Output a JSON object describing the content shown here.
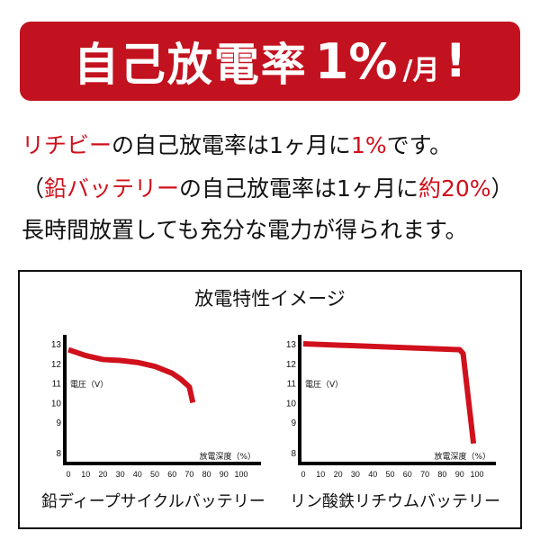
{
  "banner": {
    "main": "自己放電率",
    "pct": "1%",
    "unit": "/月",
    "excl": "!"
  },
  "lines": [
    {
      "parts": [
        {
          "t": "リチビー",
          "red": true
        },
        {
          "t": "の自己放電率は1ヶ月に",
          "red": false
        },
        {
          "t": "1%",
          "red": true
        },
        {
          "t": "です。",
          "red": false
        }
      ]
    },
    {
      "parts": [
        {
          "t": "（",
          "red": false
        },
        {
          "t": "鉛バッテリー",
          "red": true
        },
        {
          "t": "の自己放電率は1ヶ月に",
          "red": false
        },
        {
          "t": "約20%",
          "red": true
        },
        {
          "t": "）",
          "red": false
        }
      ]
    },
    {
      "parts": [
        {
          "t": "長時間放置しても充分な電力が得られます。",
          "red": false
        }
      ]
    }
  ],
  "colors": {
    "accent": "#c3121f",
    "curve": "#d0101c"
  },
  "chart_title": "放電特性イメージ",
  "chart_data": [
    {
      "type": "line",
      "caption": "鉛ディープサイクルバッテリー",
      "xlabel": "放電深度（%）",
      "ylabel": "電圧（V）",
      "xticks": [
        0,
        10,
        20,
        30,
        40,
        50,
        60,
        70,
        80,
        90,
        100
      ],
      "yticks": [
        8,
        9,
        10,
        11,
        12,
        13
      ],
      "x": [
        0,
        10,
        20,
        30,
        40,
        50,
        60,
        65,
        70,
        72
      ],
      "y": [
        12.7,
        12.4,
        12.2,
        12.15,
        12.05,
        11.85,
        11.5,
        11.2,
        10.8,
        10.0
      ]
    },
    {
      "type": "line",
      "caption": "リン酸鉄リチウムバッテリー",
      "xlabel": "放電深度（%）",
      "ylabel": "電圧（V）",
      "xticks": [
        0,
        10,
        20,
        30,
        40,
        50,
        60,
        70,
        80,
        90,
        100
      ],
      "yticks": [
        8,
        9,
        10,
        11,
        12,
        13
      ],
      "x": [
        0,
        90,
        92,
        98
      ],
      "y": [
        13.0,
        12.7,
        12.5,
        8.3
      ]
    }
  ]
}
